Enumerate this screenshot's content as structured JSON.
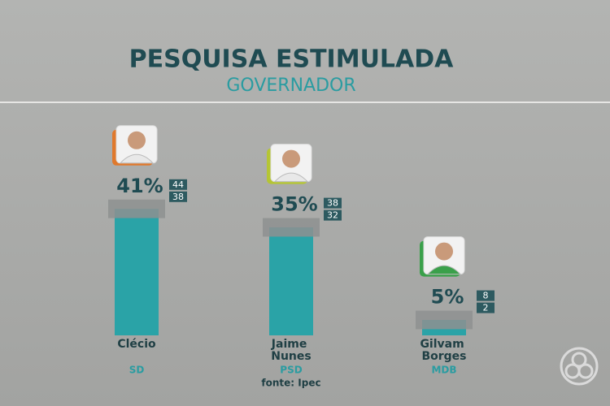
{
  "chart_data": {
    "type": "bar",
    "title": "PESQUISA ESTIMULADA",
    "subtitle": "GOVERNADOR",
    "categories": [
      "Clécio",
      "Jaime Nunes",
      "Gilvam Borges"
    ],
    "parties": [
      "SD",
      "PSD",
      "MDB"
    ],
    "values": [
      41,
      35,
      5
    ],
    "value_labels": [
      "41%",
      "35%",
      "5%"
    ],
    "upper": [
      44,
      38,
      8
    ],
    "lower": [
      38,
      32,
      2
    ],
    "color": "#2aa3a7",
    "ylim": [
      0,
      45
    ],
    "source": "fonte: Ipec"
  }
}
